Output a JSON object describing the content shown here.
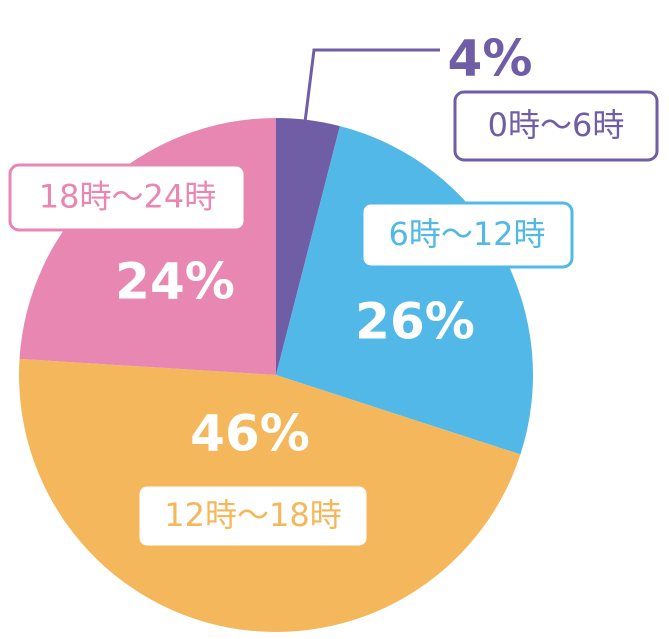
{
  "chart_data": {
    "type": "pie",
    "categories": [
      "0時〜6時",
      "6時〜12時",
      "12時〜18時",
      "18時〜24時"
    ],
    "values": [
      4,
      26,
      46,
      24
    ],
    "value_labels": [
      "4%",
      "26%",
      "46%",
      "24%"
    ],
    "colors": [
      "#6f5ea6",
      "#52b8e8",
      "#f5b75c",
      "#e987b3"
    ]
  }
}
